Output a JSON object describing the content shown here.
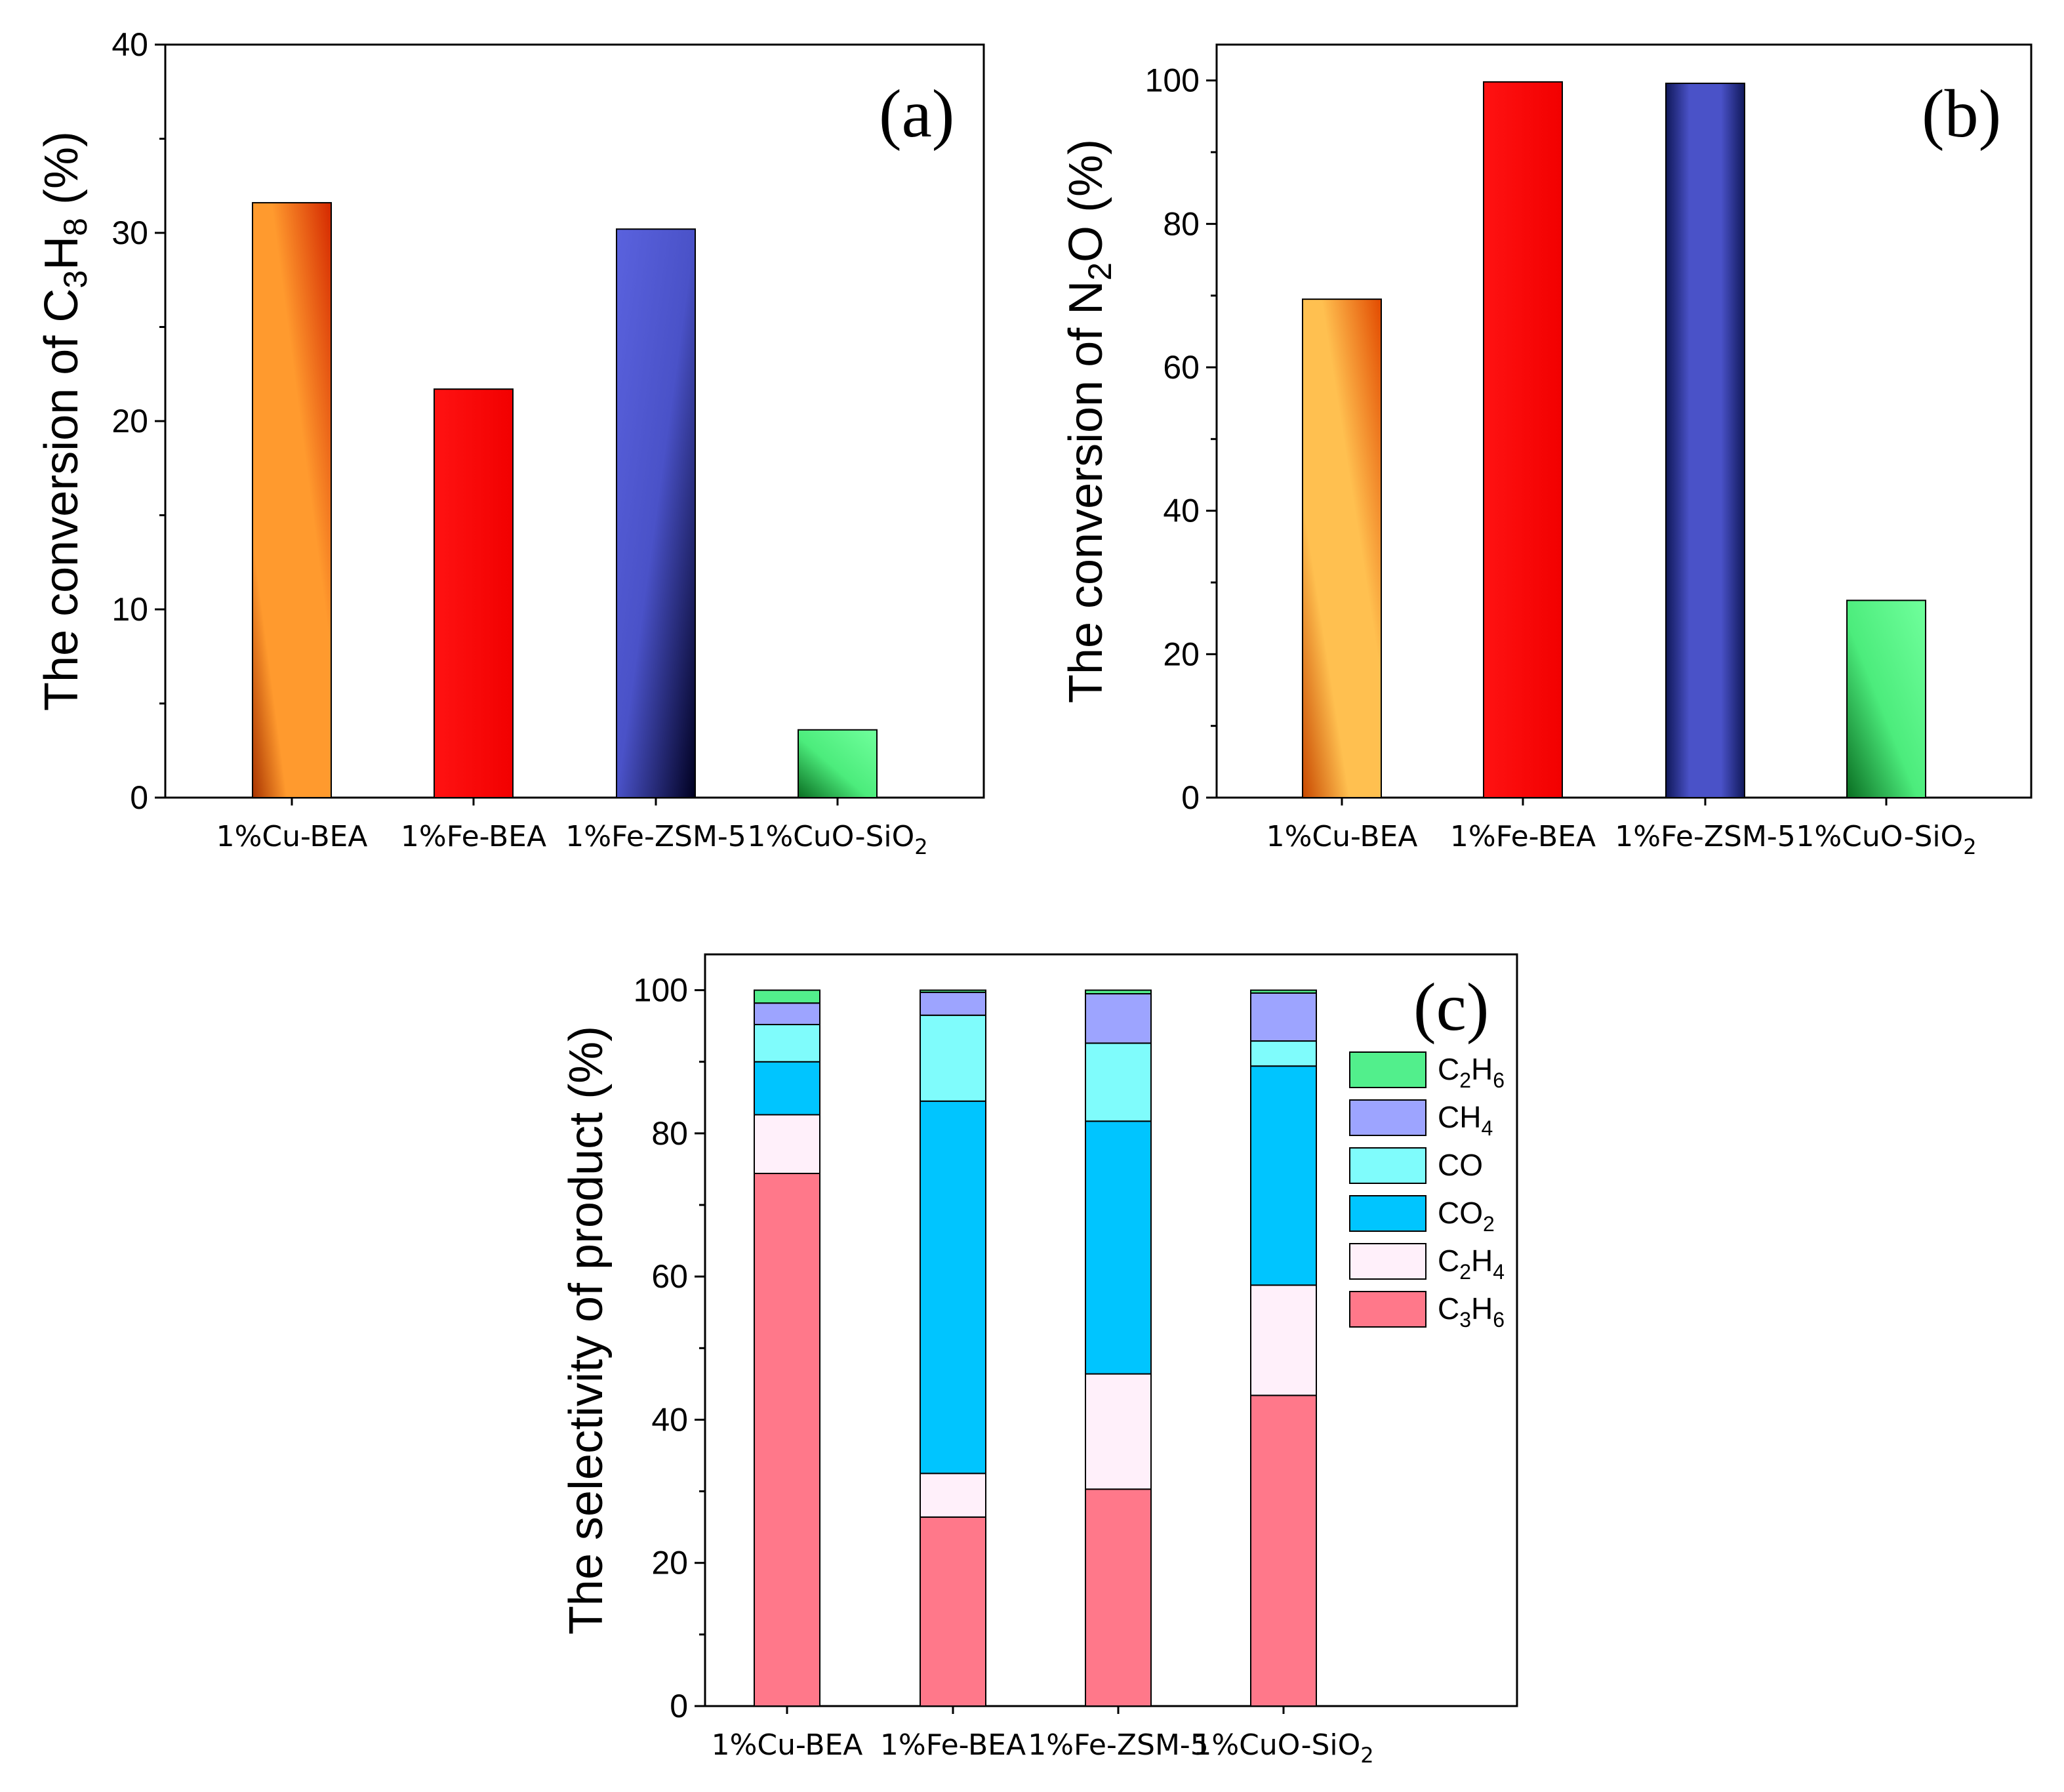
{
  "chart_data": [
    {
      "id": "a",
      "type": "bar",
      "panel_label": "(a)",
      "ylabel": {
        "prefix": "The conversion of C",
        "sub1": "3",
        "mid": "H",
        "sub2": "8",
        "suffix": " (%)"
      },
      "ylim": [
        0,
        40
      ],
      "yticks": [
        0,
        10,
        20,
        30,
        40
      ],
      "categories": [
        {
          "main": "1%Cu-BEA",
          "sub": ""
        },
        {
          "main": "1%Fe-BEA",
          "sub": ""
        },
        {
          "main": "1%Fe-ZSM-5",
          "sub": ""
        },
        {
          "main": "1%CuO-SiO",
          "sub": "2"
        }
      ],
      "values": [
        31.6,
        21.7,
        30.2,
        3.6
      ],
      "colors": [
        "#ff9a2e",
        "#ff1010",
        "#4a52c8",
        "#4cec7c"
      ]
    },
    {
      "id": "b",
      "type": "bar",
      "panel_label": "(b)",
      "ylabel": {
        "prefix": "The conversion of N",
        "sub1": "2",
        "mid": "O",
        "sub2": "",
        "suffix": " (%)"
      },
      "ylim": [
        0,
        105
      ],
      "yticks": [
        0,
        20,
        40,
        60,
        80,
        100
      ],
      "categories": [
        {
          "main": "1%Cu-BEA",
          "sub": ""
        },
        {
          "main": "1%Fe-BEA",
          "sub": ""
        },
        {
          "main": "1%Fe-ZSM-5",
          "sub": ""
        },
        {
          "main": "1%CuO-SiO",
          "sub": "2"
        }
      ],
      "values": [
        69.5,
        99.8,
        99.6,
        27.5
      ],
      "colors": [
        "#ffbf48",
        "#ff1010",
        "#4a52c8",
        "#4cec7c"
      ]
    },
    {
      "id": "c",
      "type": "bar",
      "stacked": true,
      "panel_label": "(c)",
      "ylabel": {
        "prefix": "The selectivity of product (%)",
        "sub1": "",
        "mid": "",
        "sub2": "",
        "suffix": ""
      },
      "ylim": [
        0,
        105
      ],
      "yticks": [
        0,
        20,
        40,
        60,
        80,
        100
      ],
      "categories": [
        {
          "main": "1%Cu-BEA",
          "sub": ""
        },
        {
          "main": "1%Fe-BEA",
          "sub": ""
        },
        {
          "main": "1%Fe-ZSM-5",
          "sub": ""
        },
        {
          "main": "1%CuO-SiO",
          "sub": "2"
        }
      ],
      "series": [
        {
          "name": "C3H6",
          "label": {
            "a": "C",
            "s1": "3",
            "b": "H",
            "s2": "6"
          },
          "color": "#ff788a",
          "values": [
            74.4,
            26.4,
            30.3,
            43.4
          ]
        },
        {
          "name": "C2H4",
          "label": {
            "a": "C",
            "s1": "2",
            "b": "H",
            "s2": "4"
          },
          "color": "#fff0fa",
          "values": [
            8.2,
            6.1,
            16.1,
            15.4
          ]
        },
        {
          "name": "CO2",
          "label": {
            "a": "CO",
            "s1": "2",
            "b": "",
            "s2": ""
          },
          "color": "#00c5ff",
          "values": [
            7.4,
            52.0,
            35.3,
            30.6
          ]
        },
        {
          "name": "CO",
          "label": {
            "a": "CO",
            "s1": "",
            "b": "",
            "s2": ""
          },
          "color": "#7ffcfc",
          "values": [
            5.2,
            12.0,
            10.9,
            3.5
          ]
        },
        {
          "name": "CH4",
          "label": {
            "a": "CH",
            "s1": "4",
            "b": "",
            "s2": ""
          },
          "color": "#9da4ff",
          "values": [
            3.0,
            3.2,
            6.9,
            6.7
          ]
        },
        {
          "name": "C2H6",
          "label": {
            "a": "C",
            "s1": "2",
            "b": "H",
            "s2": "6"
          },
          "color": "#52ef8c",
          "values": [
            1.8,
            0.3,
            0.5,
            0.4
          ]
        }
      ],
      "legend_order": [
        5,
        4,
        3,
        2,
        1,
        0
      ]
    }
  ]
}
